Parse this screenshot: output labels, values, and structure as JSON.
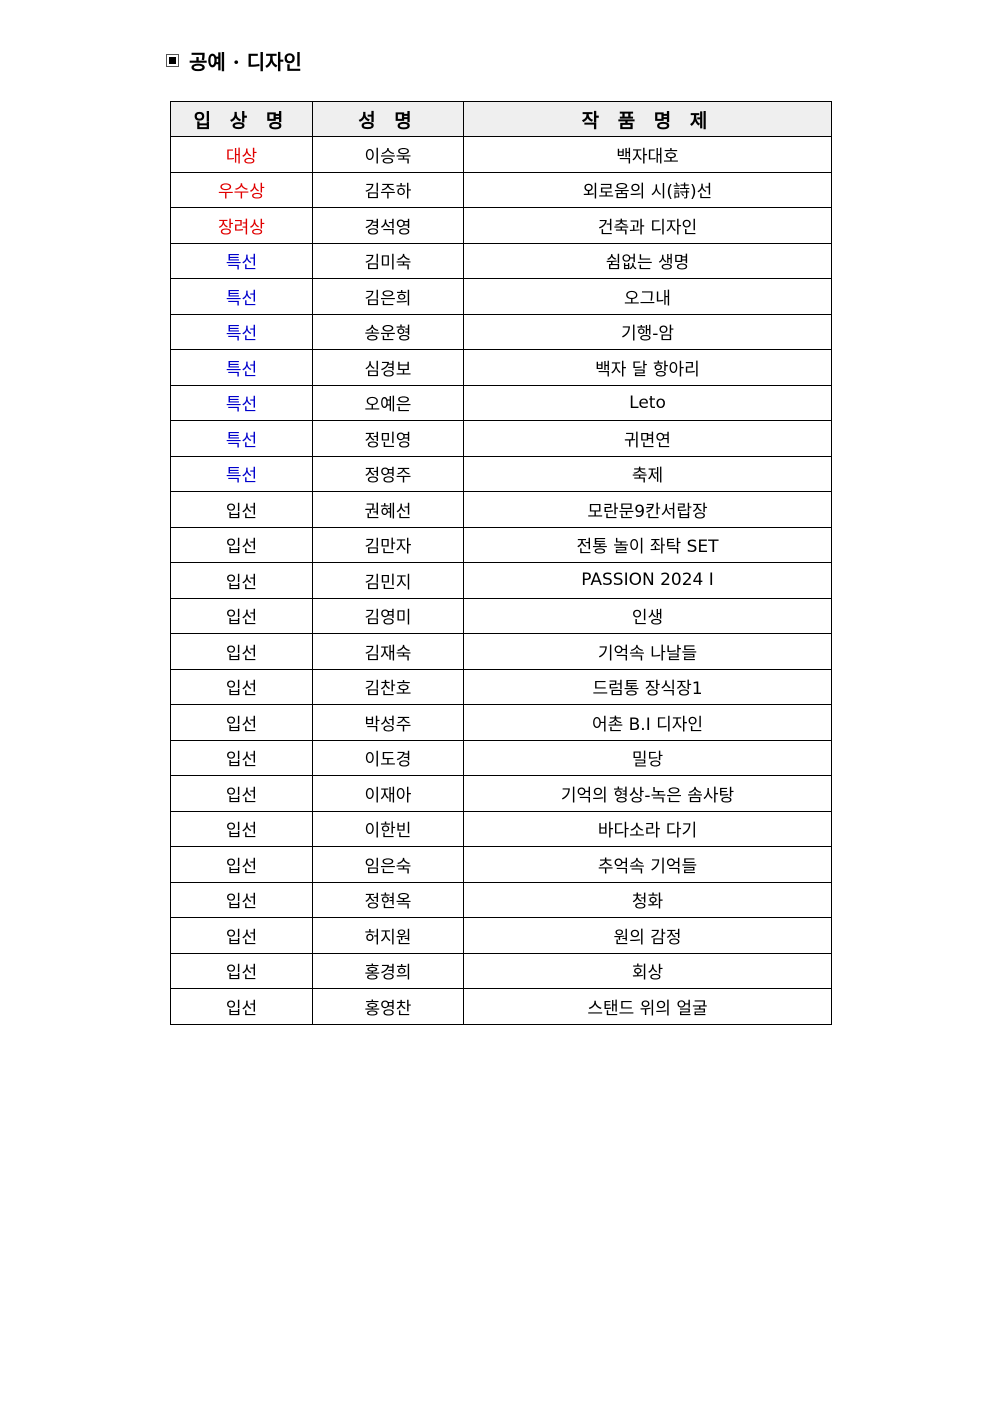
{
  "section_title": "공예 · 디자인",
  "colors": {
    "top_prize": "#e00000",
    "special": "#0000cc"
  },
  "headers": [
    "입 상 명",
    "성 명",
    "작 품 명 제"
  ],
  "rows": [
    [
      "대상",
      "이승욱",
      "백자대호"
    ],
    [
      "우수상",
      "김주하",
      "외로움의 시(詩)선"
    ],
    [
      "장려상",
      "경석영",
      "건축과 디자인"
    ],
    [
      "특선",
      "김미숙",
      "쉼없는 생명"
    ],
    [
      "특선",
      "김은희",
      "오그내"
    ],
    [
      "특선",
      "송운형",
      "기행-암"
    ],
    [
      "특선",
      "심경보",
      "백자 달 항아리"
    ],
    [
      "특선",
      "오예은",
      "Leto"
    ],
    [
      "특선",
      "정민영",
      "귀면연"
    ],
    [
      "특선",
      "정영주",
      "축제"
    ],
    [
      "입선",
      "권혜선",
      "모란문9칸서랍장"
    ],
    [
      "입선",
      "김만자",
      "전통 놀이 좌탁 SET"
    ],
    [
      "입선",
      "김민지",
      "PASSION 2024 Ⅰ"
    ],
    [
      "입선",
      "김영미",
      "인생"
    ],
    [
      "입선",
      "김재숙",
      "기억속 나날들"
    ],
    [
      "입선",
      "김찬호",
      "드럼통 장식장1"
    ],
    [
      "입선",
      "박성주",
      "어촌 B.I 디자인"
    ],
    [
      "입선",
      "이도경",
      "밀당"
    ],
    [
      "입선",
      "이재아",
      "기억의 형상-녹은 솜사탕"
    ],
    [
      "입선",
      "이한빈",
      "바다소라 다기"
    ],
    [
      "입선",
      "임은숙",
      "추억속 기억들"
    ],
    [
      "입선",
      "정현옥",
      "청화"
    ],
    [
      "입선",
      "허지원",
      "원의 감정"
    ],
    [
      "입선",
      "홍경희",
      "회상"
    ],
    [
      "입선",
      "홍영찬",
      "스탠드 위의 얼굴"
    ]
  ]
}
